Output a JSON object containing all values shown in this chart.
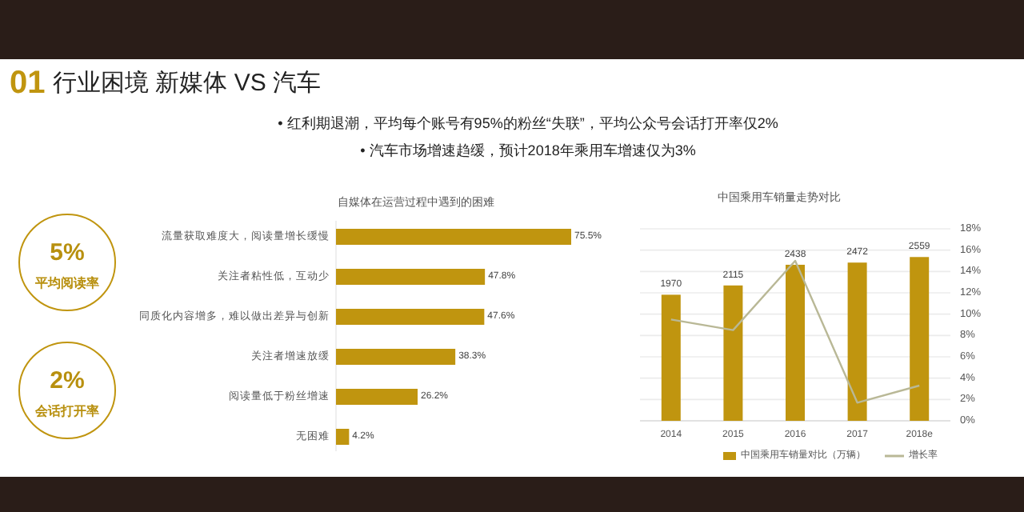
{
  "chart_data": [
    {
      "type": "other",
      "title": "行业困境  新媒体 VS 汽车",
      "annotations": [
        "01",
        "•  红利期退潮，平均每个账号有95%的粉丝“失联”，平均公众号会话打开率仅2%",
        "•  汽车市场增速趋缓，预计2018年乘用车增速仅为3%",
        "5%",
        "平均阅读率",
        "2%",
        "会话打开率"
      ]
    },
    {
      "type": "bar",
      "orientation": "horizontal",
      "title": "自媒体在运营过程中遇到的困难",
      "categories": [
        "流量获取难度大，阅读量增长缓慢",
        "关注者粘性低，互动少",
        "同质化内容增多，难以做出差异与创新",
        "关注者增速放缓",
        "阅读量低于粉丝增速",
        "无困难"
      ],
      "values": [
        75.5,
        47.8,
        47.6,
        38.3,
        26.2,
        4.2
      ],
      "value_labels": [
        "75.5%",
        "47.8%",
        "47.6%",
        "38.3%",
        "26.2%",
        "4.2%"
      ],
      "color": "#c0950f"
    },
    {
      "type": "bar",
      "title": "中国乘用车销量走势对比",
      "categories": [
        "2014",
        "2015",
        "2016",
        "2017",
        "2018e"
      ],
      "series": [
        {
          "name": "中国乘用车销量对比（万辆）",
          "color": "#c0950f",
          "values": [
            1970,
            2115,
            2438,
            2472,
            2559
          ],
          "value_labels": [
            "1970",
            "2115",
            "2438",
            "2472",
            "2559"
          ]
        },
        {
          "name": "增长率",
          "type": "line",
          "axis": "y2",
          "color": "#b9b896",
          "values": [
            9.5,
            8.5,
            15.0,
            1.7,
            3.3
          ]
        }
      ],
      "ylim": [
        0,
        3000
      ],
      "tick_labels": "x",
      "y2lim": [
        0,
        18
      ],
      "y2ticks": [
        {
          "value": 0,
          "label": "0%"
        },
        {
          "value": 2,
          "label": "2%"
        },
        {
          "value": 4,
          "label": "4%"
        },
        {
          "value": 6,
          "label": "6%"
        },
        {
          "value": 8,
          "label": "8%"
        },
        {
          "value": 10,
          "label": "10%"
        },
        {
          "value": 12,
          "label": "12%"
        },
        {
          "value": 14,
          "label": "14%"
        },
        {
          "value": 16,
          "label": "16%"
        },
        {
          "value": 18,
          "label": "18%"
        }
      ],
      "grid": "y",
      "legend": "bottom"
    }
  ]
}
